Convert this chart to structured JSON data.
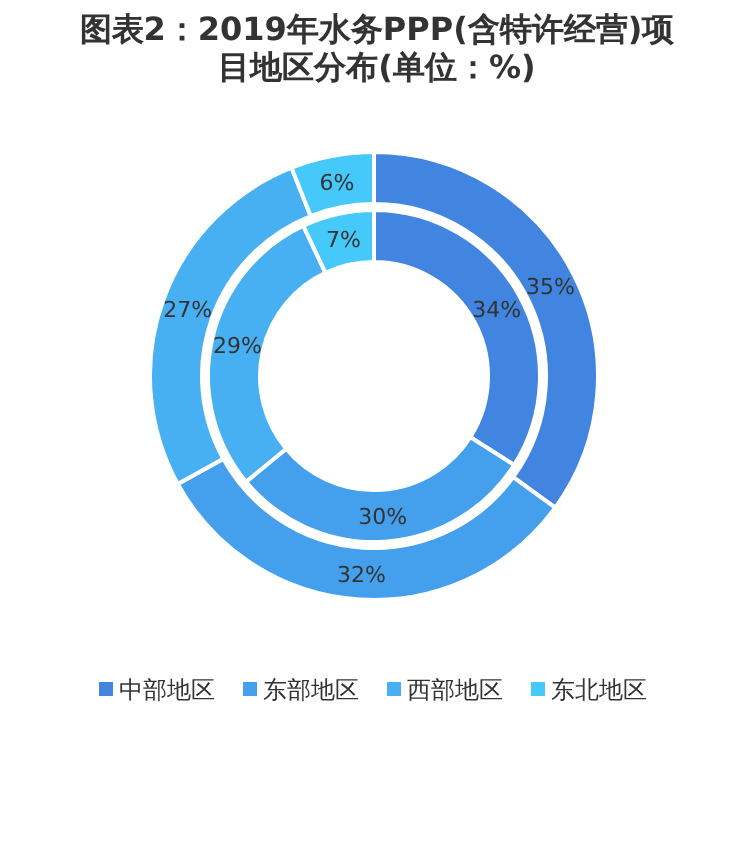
{
  "chart_data": {
    "type": "donut",
    "title": "图表2：2019年水务PPP(含特许经营)项目地区分布(单位：%)",
    "categories": [
      "中部地区",
      "东部地区",
      "西部地区",
      "东北地区"
    ],
    "colors": [
      "#4285e0",
      "#44a0ec",
      "#47b0f2",
      "#45c9fb"
    ],
    "series": [
      {
        "values": [
          35,
          32,
          27,
          6
        ],
        "value_labels": [
          "35%",
          "32%",
          "27%",
          "6%"
        ]
      },
      {
        "values": [
          34,
          30,
          29,
          7
        ],
        "value_labels": [
          "34%",
          "30%",
          "29%",
          "7%"
        ]
      }
    ],
    "legend": "bottom"
  }
}
